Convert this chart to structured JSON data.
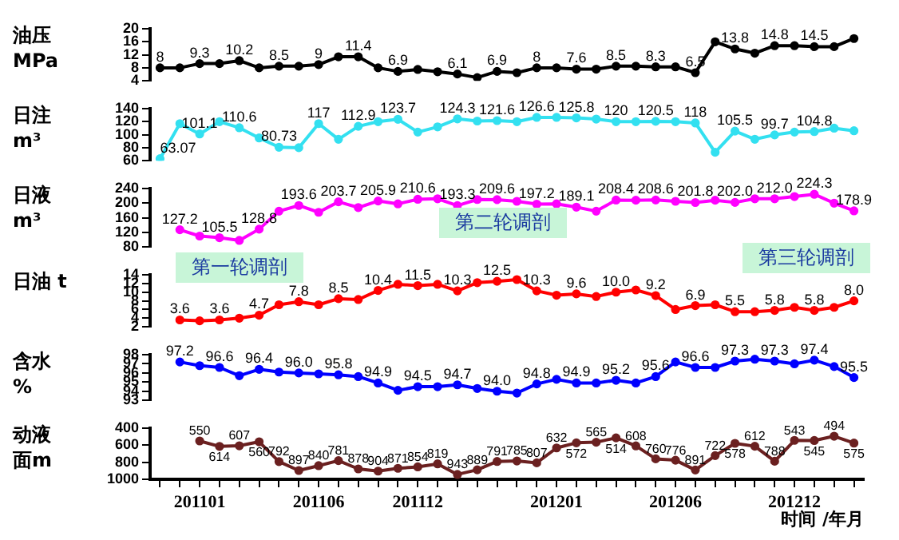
{
  "chart_data": [
    {
      "type": "line",
      "ylabel": "油压 MPa",
      "tick_labels": "y",
      "marker": "circle",
      "ylim": [
        4,
        20
      ],
      "yticks": [
        4,
        8,
        12,
        16,
        20
      ],
      "categories": [
        null,
        null,
        "201101",
        null,
        null,
        null,
        null,
        null,
        "201106",
        null,
        null,
        null,
        null,
        "201112",
        null,
        null,
        null,
        null,
        null,
        null,
        "201201",
        null,
        null,
        null,
        null,
        null,
        "201206",
        null,
        null,
        null,
        null,
        null,
        "201212",
        null,
        null,
        null
      ],
      "series": [
        {
          "color": "#000000",
          "values": [
            8,
            8,
            9.3,
            9.3,
            10.2,
            8,
            8.5,
            8.5,
            9,
            11.4,
            11.4,
            8,
            6.9,
            7.5,
            6.8,
            6.1,
            5,
            6.9,
            6.5,
            8,
            8,
            7.6,
            7.6,
            8.5,
            8.5,
            8.3,
            8.3,
            6.5,
            16,
            13.8,
            12.5,
            14.8,
            14.8,
            14.5,
            14.5,
            17
          ],
          "value_labels": [
            "8",
            null,
            "9.3",
            null,
            "10.2",
            null,
            "8.5",
            null,
            "9",
            null,
            "11.4",
            null,
            "6.9",
            null,
            null,
            "6.1",
            null,
            "6.9",
            null,
            "8",
            null,
            "7.6",
            null,
            "8.5",
            null,
            "8.3",
            null,
            "6.5",
            null,
            "13.8",
            null,
            "14.8",
            null,
            "14.5",
            null,
            null
          ]
        }
      ]
    },
    {
      "type": "line",
      "ylabel": "日注 m³",
      "tick_labels": "y",
      "marker": "circle",
      "ylim": [
        60,
        140
      ],
      "yticks": [
        60,
        80,
        100,
        120,
        140
      ],
      "categories": [
        null,
        null,
        "201101",
        null,
        null,
        null,
        null,
        null,
        "201106",
        null,
        null,
        null,
        null,
        "201112",
        null,
        null,
        null,
        null,
        null,
        null,
        "201201",
        null,
        null,
        null,
        null,
        null,
        "201206",
        null,
        null,
        null,
        null,
        null,
        "201212",
        null,
        null,
        null
      ],
      "series": [
        {
          "color": "#33e0f0",
          "values": [
            63.07,
            117,
            101.1,
            120,
            110.6,
            95,
            80.73,
            80,
            117,
            93,
            112.9,
            120,
            123.7,
            104,
            112,
            124.3,
            121,
            121.6,
            120,
            126.6,
            126.6,
            125.8,
            124,
            120,
            120,
            120.5,
            120,
            118,
            73,
            105.5,
            93,
            99.7,
            104,
            104.8,
            110,
            106
          ],
          "value_labels": [
            "63.07",
            null,
            "101.1",
            null,
            "110.6",
            null,
            "80.73",
            null,
            "117",
            null,
            "112.9",
            null,
            "123.7",
            null,
            null,
            "124.3",
            null,
            "121.6",
            null,
            "126.6",
            null,
            "125.8",
            null,
            "120",
            null,
            "120.5",
            null,
            "118",
            null,
            "105.5",
            null,
            "99.7",
            null,
            "104.8",
            null,
            null
          ]
        }
      ]
    },
    {
      "type": "line",
      "ylabel": "日液 m³",
      "tick_labels": "y",
      "marker": "circle",
      "ylim": [
        80,
        240
      ],
      "yticks": [
        80,
        120,
        160,
        200,
        240
      ],
      "annotations": [
        "第一轮调剖",
        "第二轮调剖",
        "第三轮调剖"
      ],
      "categories": [
        null,
        null,
        "201101",
        null,
        null,
        null,
        null,
        null,
        "201106",
        null,
        null,
        null,
        null,
        "201112",
        null,
        null,
        null,
        null,
        null,
        null,
        "201201",
        null,
        null,
        null,
        null,
        null,
        "201206",
        null,
        null,
        null,
        null,
        null,
        "201212",
        null,
        null,
        null
      ],
      "series": [
        {
          "color": "#ff00ff",
          "values": [
            null,
            127.2,
            110,
            105.5,
            98,
            128.8,
            178,
            193.6,
            175,
            203.7,
            188,
            205.9,
            198,
            210.6,
            212,
            193.3,
            210,
            209.6,
            205,
            197.2,
            198,
            189.1,
            178,
            208.4,
            208,
            208.6,
            205,
            201.8,
            208,
            202,
            212,
            212,
            218,
            224.3,
            200,
            178.9
          ],
          "value_labels": [
            null,
            "127.2",
            null,
            "105.5",
            null,
            "128.8",
            null,
            "193.6",
            null,
            "203.7",
            null,
            "205.9",
            null,
            "210.6",
            null,
            "193.3",
            null,
            "209.6",
            null,
            "197.2",
            null,
            "189.1",
            null,
            "208.4",
            null,
            "208.6",
            null,
            "201.8",
            null,
            "202.0",
            null,
            "212.0",
            null,
            "224.3",
            null,
            "178.9"
          ]
        }
      ]
    },
    {
      "type": "line",
      "ylabel": "日油 t",
      "tick_labels": "y",
      "marker": "circle",
      "ylim": [
        2,
        14
      ],
      "yticks": [
        2,
        4,
        6,
        8,
        10,
        12,
        14
      ],
      "categories": [
        null,
        null,
        "201101",
        null,
        null,
        null,
        null,
        null,
        "201106",
        null,
        null,
        null,
        null,
        "201112",
        null,
        null,
        null,
        null,
        null,
        null,
        "201201",
        null,
        null,
        null,
        null,
        null,
        "201206",
        null,
        null,
        null,
        null,
        null,
        "201212",
        null,
        null,
        null
      ],
      "series": [
        {
          "color": "#ff0000",
          "values": [
            null,
            3.6,
            3.4,
            3.6,
            4,
            4.7,
            7.1,
            7.8,
            7.1,
            8.5,
            8.3,
            10.4,
            11.8,
            11.5,
            11.8,
            10.3,
            12.2,
            12.5,
            12.9,
            10.3,
            9.3,
            9.6,
            9,
            10,
            10.5,
            9.2,
            6,
            6.9,
            7.1,
            5.5,
            5.5,
            5.8,
            6.5,
            5.8,
            6.5,
            8
          ],
          "value_labels": [
            null,
            "3.6",
            null,
            "3.6",
            null,
            "4.7",
            null,
            "7.8",
            null,
            "8.5",
            null,
            "10.4",
            null,
            "11.5",
            null,
            "10.3",
            null,
            "12.5",
            null,
            "10.3",
            null,
            "9.6",
            null,
            "10.0",
            null,
            "9.2",
            null,
            "6.9",
            null,
            "5.5",
            null,
            "5.8",
            null,
            "5.8",
            null,
            "8.0"
          ]
        }
      ]
    },
    {
      "type": "line",
      "ylabel": "含水 %",
      "tick_labels": "y",
      "marker": "circle",
      "ylim": [
        93,
        98
      ],
      "yticks": [
        93,
        94,
        95,
        96,
        97,
        98
      ],
      "categories": [
        null,
        null,
        "201101",
        null,
        null,
        null,
        null,
        null,
        "201106",
        null,
        null,
        null,
        null,
        "201112",
        null,
        null,
        null,
        null,
        null,
        null,
        "201201",
        null,
        null,
        null,
        null,
        null,
        "201206",
        null,
        null,
        null,
        null,
        null,
        "201212",
        null,
        null,
        null
      ],
      "series": [
        {
          "color": "#0000ff",
          "values": [
            null,
            97.2,
            96.8,
            96.6,
            95.7,
            96.4,
            96.1,
            96,
            95.9,
            95.8,
            95.6,
            94.9,
            94.1,
            94.5,
            94.5,
            94.7,
            94.3,
            94,
            93.8,
            94.8,
            95.3,
            94.9,
            94.9,
            95.2,
            94.9,
            95.6,
            97.2,
            96.6,
            96.6,
            97.3,
            97.5,
            97.3,
            97,
            97.4,
            96.7,
            95.5
          ],
          "value_labels": [
            null,
            "97.2",
            null,
            "96.6",
            null,
            "96.4",
            null,
            "96.0",
            null,
            "95.8",
            null,
            "94.9",
            null,
            "94.5",
            null,
            "94.7",
            null,
            "94.0",
            null,
            "94.8",
            null,
            "94.9",
            null,
            "95.2",
            null,
            "95.6",
            null,
            "96.6",
            null,
            "97.3",
            null,
            "97.3",
            null,
            "97.4",
            null,
            "95.5"
          ]
        }
      ]
    },
    {
      "type": "line",
      "ylabel": "动液面m",
      "xlabel": "时间 /年月",
      "marker": "circle",
      "data_labels": true,
      "ylim": [
        1000,
        400
      ],
      "yticks": [
        400,
        600,
        800,
        1000
      ],
      "categories": [
        null,
        null,
        "201101",
        null,
        null,
        null,
        null,
        null,
        "201106",
        null,
        null,
        null,
        null,
        "201112",
        null,
        null,
        null,
        null,
        null,
        null,
        "201201",
        null,
        null,
        null,
        null,
        null,
        "201206",
        null,
        null,
        null,
        null,
        null,
        "201212",
        null,
        null,
        null
      ],
      "series": [
        {
          "color": "#6b2020",
          "values": [
            null,
            null,
            550,
            614,
            607,
            560,
            792,
            897,
            840,
            781,
            878,
            904,
            871,
            854,
            819,
            943,
            889,
            791,
            785,
            807,
            632,
            572,
            565,
            514,
            608,
            760,
            776,
            891,
            722,
            578,
            612,
            788,
            543,
            545,
            494,
            575
          ]
        }
      ]
    }
  ]
}
